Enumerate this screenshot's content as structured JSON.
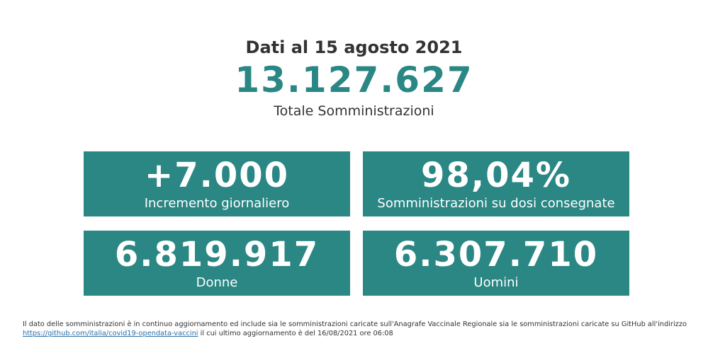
{
  "header": {
    "date_heading": "Dati al 15 agosto 2021",
    "total_value": "13.127.627",
    "total_label": "Totale Somministrazioni"
  },
  "cards": [
    {
      "value": "+7.000",
      "label": "Incremento giornaliero"
    },
    {
      "value": "98,04%",
      "label": "Somministrazioni su dosi consegnate"
    },
    {
      "value": "6.819.917",
      "label": "Donne"
    },
    {
      "value": "6.307.710",
      "label": "Uomini"
    }
  ],
  "footnote": {
    "text_line1": "Il dato delle somministrazioni è in continuo aggiornamento ed include sia le somministrazioni caricate sull'Anagrafe Vaccinale Regionale sia le somministrazioni caricate su GitHub all'indirizzo",
    "link_text": "https://github.com/italia/covid19-opendata-vaccini",
    "text_line2": "il cui ultimo aggiornamento è del 16/08/2021 ore 06:08"
  },
  "colors": {
    "accent": "#2a8784",
    "text": "#333333",
    "link": "#2a6fa8"
  }
}
